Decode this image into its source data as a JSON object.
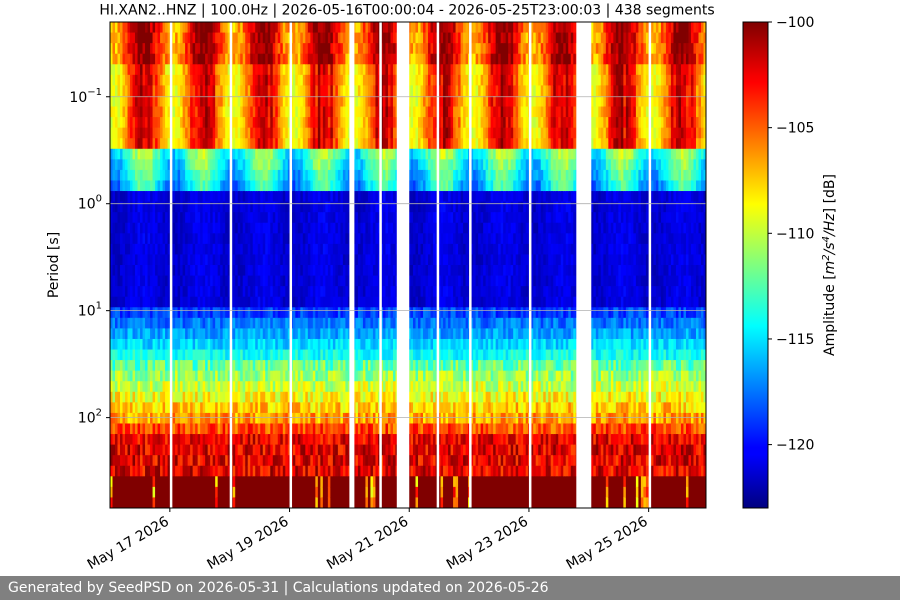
{
  "chart_data": {
    "type": "heatmap",
    "title": "HI.XAN2..HNZ | 100.0Hz | 2026-05-16T00:00:04 - 2026-05-25T23:00:03 | 438 segments",
    "ylabel": "Period [s]",
    "y_scale": "log",
    "y_inverted": true,
    "ylim_period_s": [
      0.02,
      700
    ],
    "y_ticks": [
      {
        "value": 0.1,
        "base": "10",
        "exp": "−1"
      },
      {
        "value": 1,
        "base": "10",
        "exp": "0"
      },
      {
        "value": 10,
        "base": "10",
        "exp": "1"
      },
      {
        "value": 100,
        "base": "10",
        "exp": "2"
      }
    ],
    "x_range": [
      "2026-05-16T00:00:04",
      "2026-05-25T23:00:03"
    ],
    "x_ticks": [
      {
        "date": "2026-05-17",
        "label": "May 17 2026"
      },
      {
        "date": "2026-05-19",
        "label": "May 19 2026"
      },
      {
        "date": "2026-05-21",
        "label": "May 21 2026"
      },
      {
        "date": "2026-05-23",
        "label": "May 23 2026"
      },
      {
        "date": "2026-05-25",
        "label": "May 25 2026"
      }
    ],
    "gaps": [
      {
        "start": "2026-05-17T00:00:00",
        "end": "2026-05-17T01:00:00"
      },
      {
        "start": "2026-05-18T00:00:00",
        "end": "2026-05-18T01:00:00"
      },
      {
        "start": "2026-05-19T00:00:00",
        "end": "2026-05-19T01:00:00"
      },
      {
        "start": "2026-05-20T00:00:00",
        "end": "2026-05-20T02:00:00"
      },
      {
        "start": "2026-05-20T12:00:00",
        "end": "2026-05-20T13:00:00"
      },
      {
        "start": "2026-05-20T19:00:00",
        "end": "2026-05-21T00:00:00"
      },
      {
        "start": "2026-05-21T11:00:00",
        "end": "2026-05-21T12:00:00"
      },
      {
        "start": "2026-05-22T00:00:00",
        "end": "2026-05-22T01:00:00"
      },
      {
        "start": "2026-05-23T00:00:00",
        "end": "2026-05-23T01:00:00"
      },
      {
        "start": "2026-05-23T19:00:00",
        "end": "2026-05-24T01:00:00"
      },
      {
        "start": "2026-05-25T00:00:00",
        "end": "2026-05-25T01:00:00"
      }
    ],
    "colorbar": {
      "label_parts": [
        "Amplitude [",
        "m",
        "2",
        "/s",
        "4",
        "/Hz",
        "] [dB]"
      ],
      "range_db": [
        -123,
        -100
      ],
      "ticks": [
        -100,
        -105,
        -110,
        -115,
        -120
      ],
      "colormap": "jet"
    },
    "grid": true
  },
  "footer": {
    "text": "Generated by SeedPSD on 2026-05-31 | Calculations updated on 2026-05-26"
  },
  "colors": {
    "footer_bg": "#808080",
    "gap": "#ffffff",
    "gridline": "#b0b0b0"
  }
}
